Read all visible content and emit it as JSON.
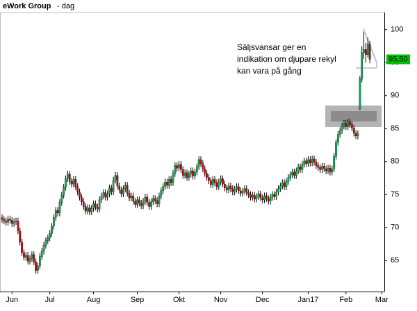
{
  "chart_data": {
    "type": "candlestick",
    "title": "eWork Group",
    "subtitle": "- dag",
    "annotation": [
      "Säljsvansar ger en",
      "indikation om djupare rekyl",
      "kan vara på gång"
    ],
    "up_color": "#00b050",
    "down_color": "#d00000",
    "wick_color": "#000000",
    "last_label": {
      "value": 95.5,
      "label": "95,50"
    },
    "last_label_color": "#00c000",
    "ylim": [
      60.3,
      102.6
    ],
    "yticks": [
      65,
      70,
      75,
      80,
      85,
      90,
      95,
      100
    ],
    "xlim": [
      -1.05,
      192.3
    ],
    "xticks": [
      {
        "value": 5,
        "label": "Jun"
      },
      {
        "value": 24,
        "label": "Jul"
      },
      {
        "value": 46,
        "label": "Aug"
      },
      {
        "value": 68,
        "label": "Sep"
      },
      {
        "value": 89,
        "label": "Okt"
      },
      {
        "value": 110,
        "label": "Nov"
      },
      {
        "value": 131,
        "label": "Dec"
      },
      {
        "value": 154,
        "label": "Jan17"
      },
      {
        "value": 173,
        "label": "Feb"
      },
      {
        "value": 191,
        "label": "Mar"
      }
    ],
    "open": [
      71.5,
      71.2,
      71.0,
      70.8,
      71.3,
      71.1,
      70.6,
      70.9,
      71.0,
      69.5,
      67.8,
      66.2,
      65.5,
      65.8,
      64.9,
      65.3,
      65.9,
      64.8,
      63.5,
      64.2,
      65.6,
      66.4,
      67.3,
      68.0,
      68.4,
      69.1,
      70.2,
      71.5,
      72.6,
      72.2,
      73.8,
      74.9,
      76.1,
      77.4,
      78.1,
      77.0,
      76.6,
      77.3,
      76.2,
      75.4,
      74.6,
      73.9,
      73.2,
      72.5,
      73.0,
      72.4,
      72.9,
      73.6,
      73.1,
      72.8,
      74.2,
      74.8,
      75.3,
      74.6,
      75.1,
      76.0,
      75.4,
      77.2,
      77.9,
      76.3,
      75.7,
      75.1,
      75.9,
      76.4,
      75.2,
      74.5,
      74.8,
      74.0,
      73.5,
      74.2,
      73.7,
      73.3,
      74.0,
      74.6,
      73.8,
      73.2,
      73.9,
      74.4,
      74.1,
      73.6,
      74.8,
      75.6,
      76.2,
      76.9,
      76.4,
      77.3,
      76.8,
      78.2,
      79.4,
      79.0,
      79.6,
      78.8,
      77.9,
      78.3,
      77.6,
      78.1,
      78.6,
      77.8,
      78.4,
      79.2,
      80.3,
      79.7,
      78.9,
      78.2,
      77.6,
      77.1,
      76.5,
      77.3,
      76.8,
      76.2,
      76.9,
      77.4,
      76.6,
      76.0,
      75.7,
      76.3,
      75.9,
      75.4,
      75.8,
      76.2,
      75.6,
      75.2,
      75.5,
      75.9,
      75.3,
      75.0,
      74.6,
      74.9,
      74.3,
      74.7,
      75.1,
      74.5,
      74.2,
      74.8,
      74.4,
      74.0,
      74.6,
      75.0,
      74.7,
      75.4,
      75.9,
      76.3,
      76.8,
      76.2,
      77.0,
      77.6,
      78.0,
      78.4,
      77.9,
      78.6,
      79.2,
      78.8,
      79.6,
      80.1,
      79.7,
      80.3,
      79.8,
      80.4,
      79.9,
      79.4,
      79.1,
      78.8,
      79.3,
      78.9,
      78.6,
      79.0,
      78.4,
      78.9,
      80.8,
      82.9,
      84.1,
      84.7,
      85.4,
      85.8,
      85.3,
      86.0,
      85.6,
      85.1,
      84.3,
      83.9,
      88.0,
      92.5,
      96.5,
      97.0,
      96.2,
      97.8
    ],
    "high": [
      72.0,
      71.7,
      71.5,
      71.8,
      71.8,
      71.6,
      71.4,
      71.5,
      71.5,
      70.0,
      68.3,
      66.7,
      66.3,
      66.3,
      65.8,
      66.4,
      66.4,
      65.3,
      64.7,
      66.1,
      66.9,
      67.8,
      68.5,
      68.9,
      69.6,
      70.7,
      72.0,
      73.1,
      73.1,
      74.3,
      75.4,
      76.6,
      77.9,
      78.6,
      78.6,
      77.5,
      77.8,
      77.8,
      76.7,
      75.9,
      75.1,
      74.4,
      73.7,
      73.5,
      73.5,
      73.4,
      74.1,
      74.1,
      73.6,
      74.7,
      75.3,
      75.8,
      75.8,
      75.6,
      76.5,
      76.5,
      77.7,
      78.4,
      78.4,
      76.8,
      76.2,
      76.4,
      76.9,
      76.9,
      75.7,
      75.3,
      75.3,
      74.5,
      74.7,
      74.7,
      74.2,
      74.5,
      75.1,
      75.1,
      74.3,
      74.4,
      74.9,
      74.9,
      74.6,
      75.3,
      76.1,
      76.7,
      77.4,
      77.4,
      77.8,
      77.8,
      78.7,
      79.9,
      79.9,
      80.1,
      80.1,
      79.3,
      78.8,
      78.8,
      78.6,
      79.1,
      79.1,
      78.9,
      79.7,
      80.8,
      80.8,
      80.2,
      79.4,
      78.7,
      78.1,
      77.6,
      77.8,
      77.8,
      77.3,
      77.4,
      77.9,
      77.9,
      77.1,
      76.5,
      76.8,
      76.8,
      76.4,
      76.3,
      76.7,
      76.7,
      76.1,
      76.0,
      76.4,
      76.4,
      75.8,
      75.5,
      75.4,
      75.4,
      75.2,
      75.6,
      75.6,
      75.0,
      75.3,
      75.3,
      74.9,
      75.1,
      75.5,
      75.5,
      75.9,
      76.4,
      76.8,
      77.3,
      77.3,
      77.5,
      78.1,
      78.5,
      78.9,
      78.9,
      79.1,
      79.7,
      79.7,
      80.1,
      80.6,
      80.6,
      80.8,
      80.8,
      80.9,
      80.9,
      80.4,
      79.9,
      79.6,
      79.8,
      79.8,
      79.4,
      79.5,
      79.5,
      79.4,
      81.3,
      83.4,
      84.6,
      85.2,
      85.9,
      86.3,
      86.3,
      86.5,
      86.5,
      86.1,
      85.6,
      84.8,
      84.7,
      93.0,
      97.5,
      99.6,
      98.0,
      98.8,
      98.3
    ],
    "low": [
      70.7,
      70.5,
      70.3,
      70.3,
      70.6,
      70.1,
      70.1,
      70.4,
      69.0,
      67.3,
      65.7,
      65.0,
      65.0,
      64.4,
      64.4,
      64.8,
      64.3,
      63.0,
      63.0,
      63.7,
      65.1,
      65.9,
      66.8,
      67.5,
      67.9,
      68.6,
      69.7,
      71.0,
      71.7,
      71.7,
      73.3,
      74.4,
      75.6,
      76.9,
      76.5,
      76.1,
      76.1,
      75.7,
      74.9,
      74.1,
      73.4,
      72.7,
      72.0,
      72.0,
      71.9,
      71.9,
      72.4,
      72.6,
      72.3,
      72.3,
      73.7,
      74.3,
      74.1,
      74.1,
      74.6,
      74.9,
      74.9,
      76.7,
      75.8,
      75.2,
      74.6,
      74.6,
      75.4,
      74.7,
      74.0,
      74.0,
      73.5,
      73.0,
      73.0,
      73.2,
      72.8,
      72.8,
      73.5,
      73.3,
      72.7,
      72.7,
      73.4,
      73.6,
      73.1,
      73.1,
      74.3,
      75.1,
      75.7,
      75.9,
      75.9,
      76.3,
      76.3,
      77.7,
      78.5,
      78.5,
      78.3,
      77.4,
      77.4,
      77.1,
      77.1,
      77.6,
      77.3,
      77.3,
      77.9,
      78.7,
      79.2,
      78.4,
      77.7,
      77.1,
      76.6,
      76.0,
      76.0,
      76.3,
      75.7,
      75.7,
      76.4,
      76.1,
      75.5,
      75.2,
      75.2,
      75.4,
      74.9,
      74.9,
      75.3,
      75.1,
      74.7,
      74.7,
      75.0,
      74.8,
      74.5,
      74.1,
      74.1,
      73.8,
      73.8,
      74.2,
      74.0,
      73.7,
      73.7,
      73.9,
      73.5,
      73.5,
      74.1,
      74.2,
      74.2,
      74.9,
      75.4,
      75.8,
      75.7,
      75.7,
      76.5,
      77.1,
      77.5,
      77.4,
      77.4,
      78.1,
      78.3,
      78.3,
      79.1,
      79.2,
      79.2,
      79.3,
      79.3,
      79.4,
      78.9,
      78.6,
      78.3,
      78.3,
      78.4,
      78.1,
      78.1,
      77.9,
      77.9,
      78.4,
      80.3,
      82.4,
      83.6,
      84.2,
      84.9,
      84.8,
      84.8,
      85.1,
      84.6,
      83.8,
      83.4,
      83.4,
      87.8,
      92.0,
      95.6,
      95.0,
      95.8,
      94.9
    ],
    "close": [
      71.2,
      71.0,
      70.8,
      71.3,
      71.1,
      70.6,
      70.9,
      71.0,
      69.5,
      67.8,
      66.2,
      65.5,
      65.8,
      64.9,
      65.3,
      65.9,
      64.8,
      63.5,
      64.2,
      65.6,
      66.4,
      67.3,
      68.0,
      68.4,
      69.1,
      70.2,
      71.5,
      72.6,
      72.2,
      73.8,
      74.9,
      76.1,
      77.4,
      78.1,
      77.0,
      76.6,
      77.3,
      76.2,
      75.4,
      74.6,
      73.9,
      73.2,
      72.5,
      73.0,
      72.4,
      72.9,
      73.6,
      73.1,
      72.8,
      74.2,
      74.8,
      75.3,
      74.6,
      75.1,
      76.0,
      75.4,
      77.2,
      77.9,
      76.3,
      75.7,
      75.1,
      75.9,
      76.4,
      75.2,
      74.5,
      74.8,
      74.0,
      73.5,
      74.2,
      73.7,
      73.3,
      74.0,
      74.6,
      73.8,
      73.2,
      73.9,
      74.4,
      74.1,
      73.6,
      74.8,
      75.6,
      76.2,
      76.9,
      76.4,
      77.3,
      76.8,
      78.2,
      79.4,
      79.0,
      79.6,
      78.8,
      77.9,
      78.3,
      77.6,
      78.1,
      78.6,
      77.8,
      78.4,
      79.2,
      80.3,
      79.7,
      78.9,
      78.2,
      77.6,
      77.1,
      76.5,
      77.3,
      76.8,
      76.2,
      76.9,
      77.4,
      76.6,
      76.0,
      75.7,
      76.3,
      75.9,
      75.4,
      75.8,
      76.2,
      75.6,
      75.2,
      75.5,
      75.9,
      75.3,
      75.0,
      74.6,
      74.9,
      74.3,
      74.7,
      75.1,
      74.5,
      74.2,
      74.8,
      74.4,
      74.0,
      74.6,
      75.0,
      74.7,
      75.4,
      75.9,
      76.3,
      76.8,
      76.2,
      77.0,
      77.6,
      78.0,
      78.4,
      77.9,
      78.6,
      79.2,
      78.8,
      79.6,
      80.1,
      79.7,
      80.3,
      79.8,
      80.4,
      79.9,
      79.4,
      79.1,
      78.8,
      79.3,
      78.9,
      78.6,
      79.0,
      78.4,
      78.9,
      80.8,
      82.9,
      84.1,
      84.7,
      85.4,
      85.8,
      85.3,
      86.0,
      85.6,
      85.1,
      84.3,
      83.9,
      84.2,
      92.5,
      96.5,
      97.0,
      96.2,
      97.8,
      95.5
    ]
  }
}
